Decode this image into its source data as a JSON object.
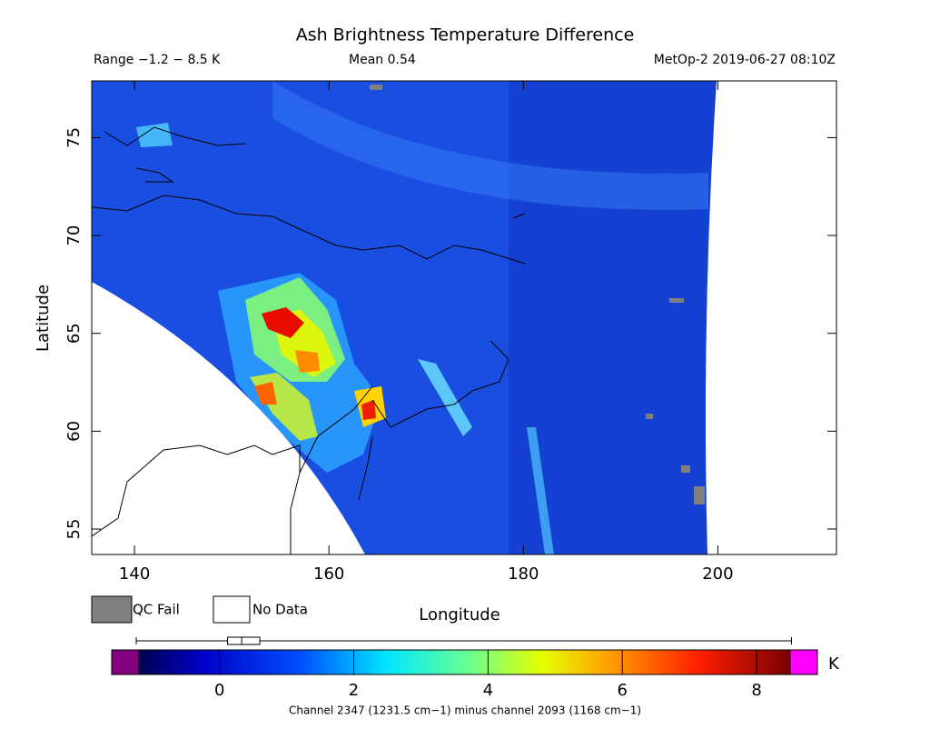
{
  "chart_data": {
    "type": "map",
    "title": "Ash Brightness Temperature Difference",
    "range_text": "Range −1.2 − 8.5 K",
    "mean_text": "Mean 0.54",
    "source_text": "MetOp-2 2019-06-27 08:10Z",
    "x_label": "Longitude",
    "y_label": "Latitude",
    "xlim": [
      135.6,
      212.2
    ],
    "xticks": [
      140,
      160,
      180,
      200
    ],
    "ylim": [
      53.7,
      77.9
    ],
    "yticks": [
      55,
      60,
      65,
      70,
      75
    ],
    "legend": [
      {
        "name": "QC Fail",
        "color": "#808080"
      },
      {
        "name": "No Data",
        "color": "#ffffff"
      }
    ],
    "colorbar": {
      "lim": [
        -1.2,
        8.5
      ],
      "ticks": [
        0,
        2,
        4,
        6,
        8
      ],
      "unit": "K",
      "under_color": "#800080",
      "over_color": "#ff00ff",
      "label": "Channel 2347 (1231.5 cm−1) minus channel 2093 (1168 cm−1)",
      "boxplot": {
        "min": -1.24,
        "q1": 0.12,
        "median": 0.33,
        "q3": 0.6,
        "max": 8.52
      }
    }
  }
}
